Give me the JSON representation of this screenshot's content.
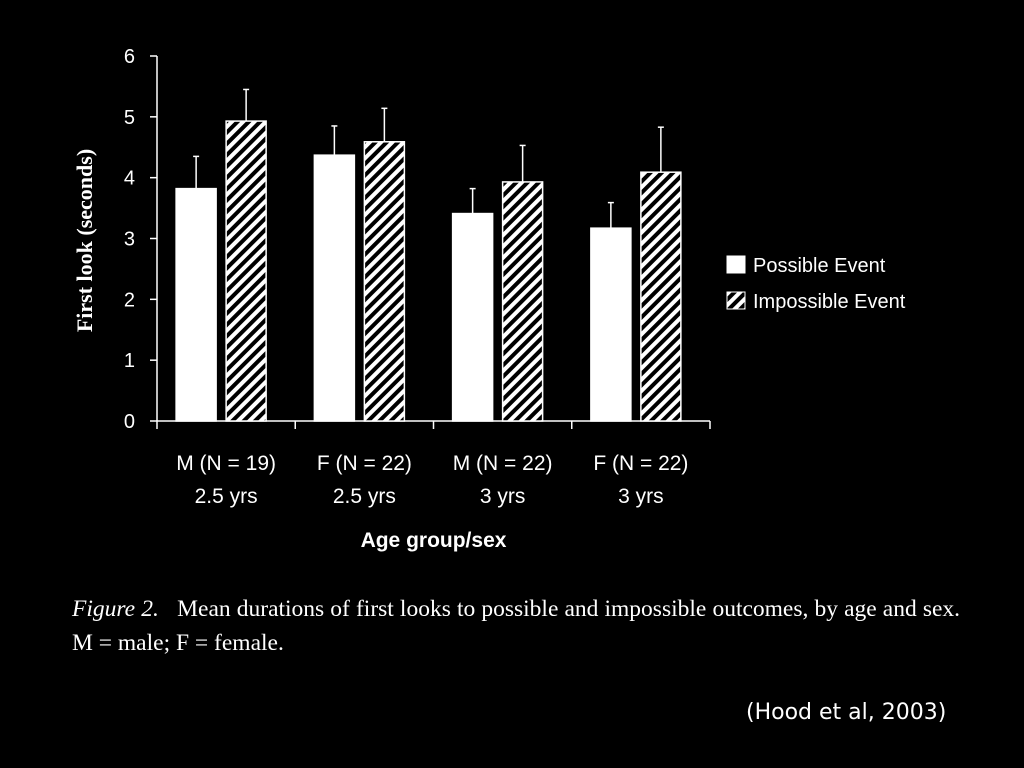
{
  "chart_data": {
    "type": "bar",
    "categories": [
      [
        "M (N = 19)",
        "2.5 yrs"
      ],
      [
        "F (N = 22)",
        "2.5 yrs"
      ],
      [
        "M (N = 22)",
        "3 yrs"
      ],
      [
        "F (N = 22)",
        "3 yrs"
      ]
    ],
    "series": [
      {
        "name": "Possible Event",
        "values": [
          3.82,
          4.37,
          3.41,
          3.17
        ],
        "error": [
          0.53,
          0.48,
          0.41,
          0.42
        ],
        "fill": "#ffffff"
      },
      {
        "name": "Impossible Event",
        "values": [
          4.93,
          4.59,
          3.93,
          4.09
        ],
        "error": [
          0.52,
          0.55,
          0.6,
          0.74
        ],
        "fill": "hatched"
      }
    ],
    "xlabel": "Age group/sex",
    "ylabel": "First look (seconds)",
    "ylim": [
      0,
      6
    ],
    "yticks": [
      "0",
      "1",
      "2",
      "3",
      "4",
      "5",
      "6"
    ],
    "grid": false,
    "legend_position": "right"
  },
  "caption": {
    "figure_label": "Figure 2.",
    "text": "Mean durations of first looks to possible and impossible outcomes, by age and sex. M = male; F = female."
  },
  "citation": "(Hood et al, 2003)",
  "colors": {
    "background": "#000000",
    "foreground": "#ffffff"
  }
}
